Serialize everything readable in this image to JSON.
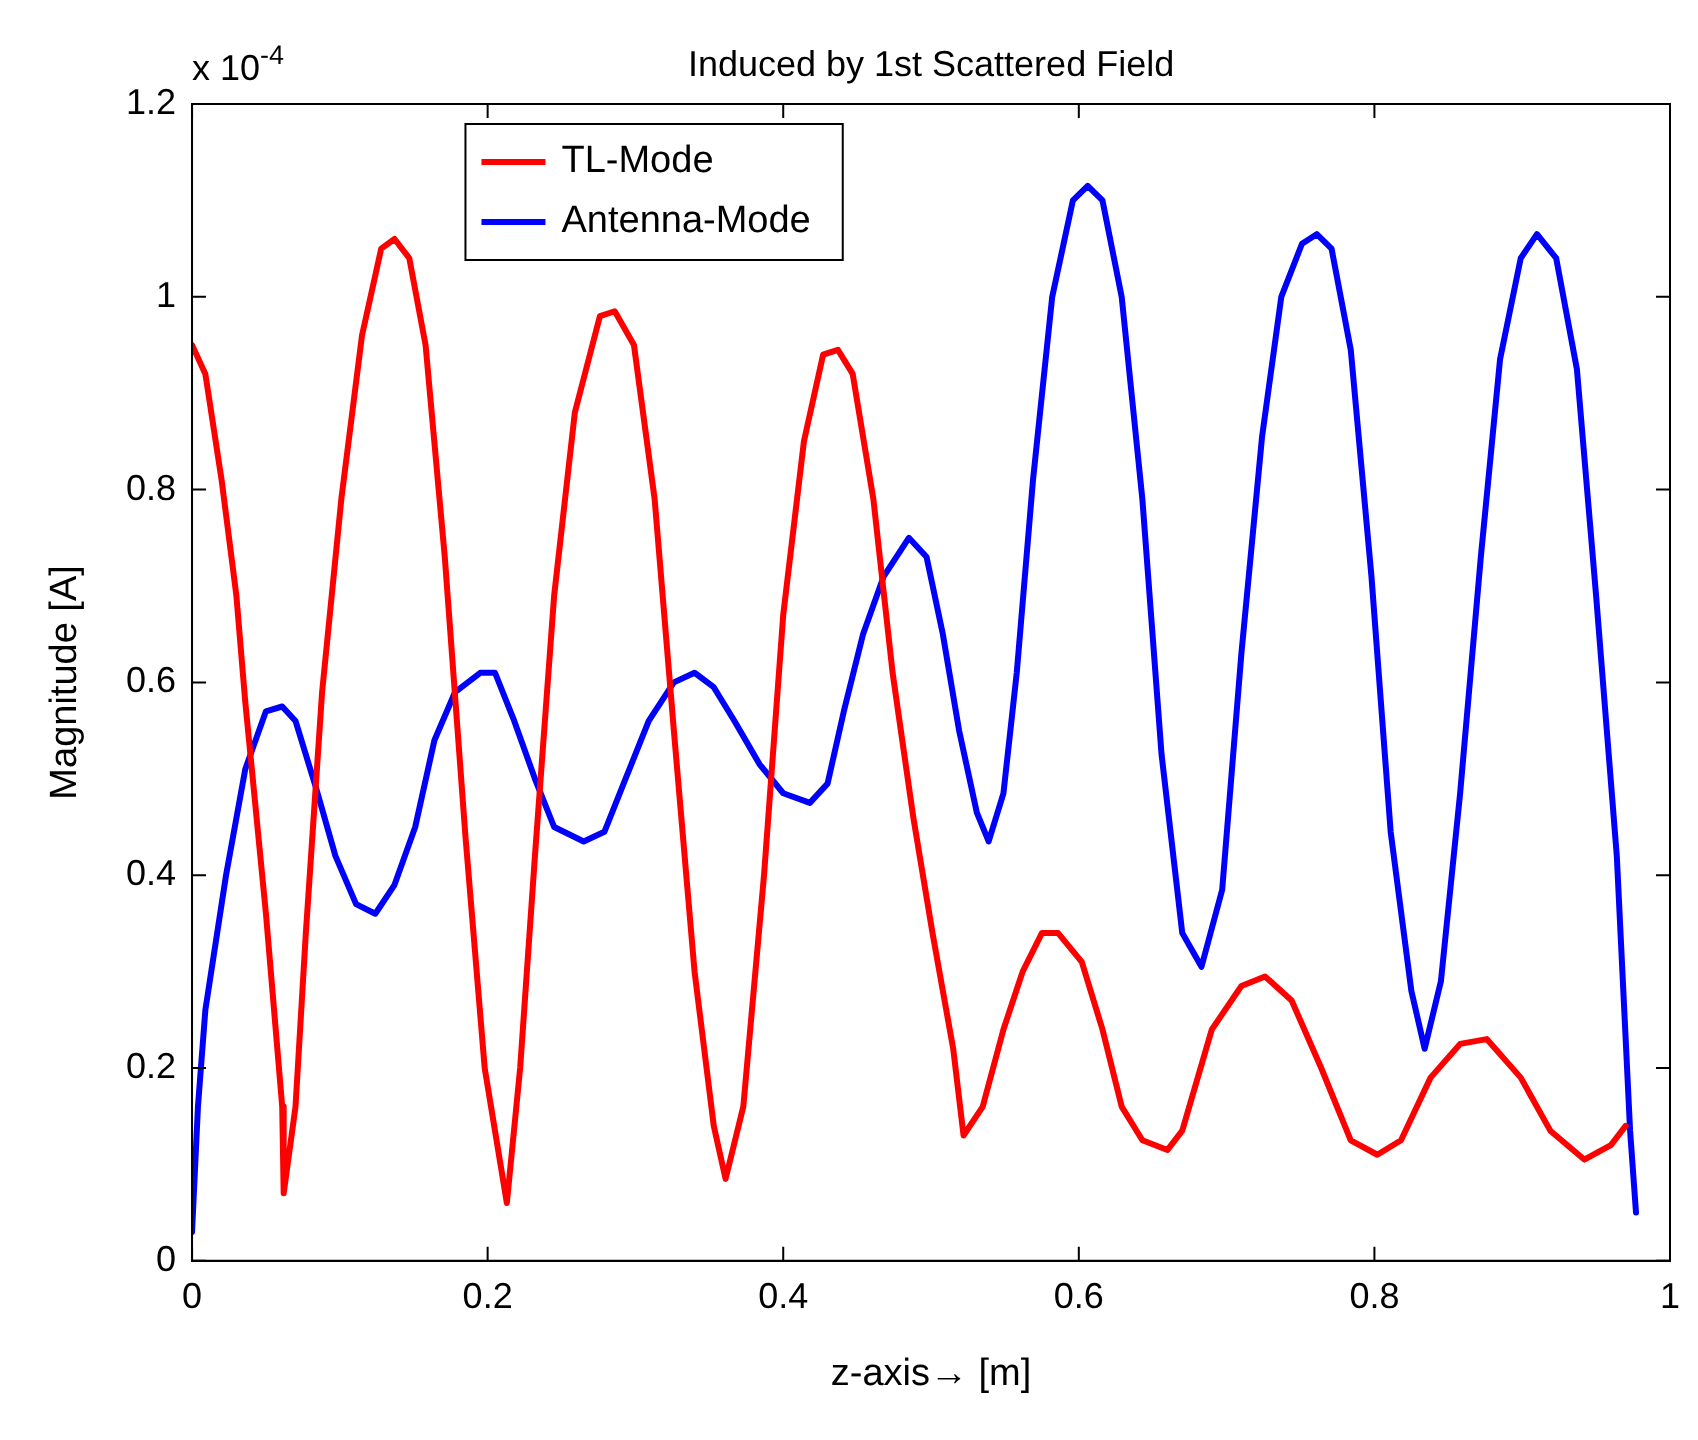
{
  "chart_data": {
    "type": "line",
    "title": "Induced by 1st Scattered Field",
    "xlabel": "z-axis→ [m]",
    "ylabel": "Magnitude [A]",
    "annotations": [
      "x 10$^{-4}$"
    ],
    "xlim": [
      0,
      1
    ],
    "xticks": [
      0,
      0.2,
      0.4,
      0.6,
      0.8,
      1
    ],
    "ylim": [
      0,
      1.2
    ],
    "yticks": [
      0,
      0.2,
      0.4,
      0.6,
      0.8,
      1,
      1.2
    ],
    "grid": false,
    "legend": "top",
    "line_style": "solid",
    "series": [
      {
        "name": "TL-Mode",
        "color": "#ff0000",
        "x": [
          0,
          0.009,
          0.02,
          0.03,
          0.036,
          0.05,
          0.061,
          0.062,
          0.07,
          0.077,
          0.088,
          0.101,
          0.115,
          0.128,
          0.137,
          0.147,
          0.158,
          0.171,
          0.185,
          0.198,
          0.213,
          0.222,
          0.232,
          0.245,
          0.259,
          0.276,
          0.286,
          0.299,
          0.313,
          0.326,
          0.34,
          0.353,
          0.361,
          0.373,
          0.387,
          0.4,
          0.414,
          0.427,
          0.437,
          0.447,
          0.461,
          0.474,
          0.488,
          0.501,
          0.515,
          0.522,
          0.535,
          0.549,
          0.562,
          0.575,
          0.586,
          0.602,
          0.616,
          0.629,
          0.643,
          0.66,
          0.67,
          0.69,
          0.71,
          0.726,
          0.744,
          0.764,
          0.784,
          0.802,
          0.818,
          0.838,
          0.858,
          0.876,
          0.899,
          0.919,
          0.942,
          0.96,
          0.97
        ],
        "values": [
          0.95,
          0.92,
          0.81,
          0.69,
          0.58,
          0.36,
          0.16,
          0.07,
          0.16,
          0.34,
          0.59,
          0.79,
          0.96,
          1.05,
          1.06,
          1.04,
          0.95,
          0.73,
          0.44,
          0.2,
          0.06,
          0.2,
          0.42,
          0.69,
          0.88,
          0.98,
          0.985,
          0.95,
          0.79,
          0.55,
          0.3,
          0.14,
          0.085,
          0.16,
          0.4,
          0.67,
          0.85,
          0.94,
          0.945,
          0.92,
          0.79,
          0.61,
          0.46,
          0.34,
          0.22,
          0.13,
          0.16,
          0.24,
          0.3,
          0.34,
          0.34,
          0.31,
          0.24,
          0.16,
          0.125,
          0.115,
          0.135,
          0.24,
          0.285,
          0.295,
          0.27,
          0.2,
          0.125,
          0.11,
          0.125,
          0.19,
          0.225,
          0.23,
          0.19,
          0.135,
          0.105,
          0.12,
          0.14
        ]
      },
      {
        "name": "Antenna-Mode",
        "color": "#0000ff",
        "x": [
          0,
          0.004,
          0.009,
          0.023,
          0.036,
          0.05,
          0.061,
          0.07,
          0.084,
          0.097,
          0.111,
          0.124,
          0.137,
          0.151,
          0.164,
          0.178,
          0.195,
          0.205,
          0.218,
          0.232,
          0.245,
          0.265,
          0.279,
          0.292,
          0.309,
          0.326,
          0.34,
          0.353,
          0.367,
          0.384,
          0.4,
          0.418,
          0.43,
          0.441,
          0.454,
          0.468,
          0.485,
          0.497,
          0.508,
          0.519,
          0.531,
          0.539,
          0.549,
          0.558,
          0.569,
          0.582,
          0.596,
          0.606,
          0.616,
          0.629,
          0.643,
          0.656,
          0.67,
          0.683,
          0.697,
          0.71,
          0.724,
          0.737,
          0.751,
          0.761,
          0.771,
          0.784,
          0.798,
          0.811,
          0.825,
          0.834,
          0.845,
          0.858,
          0.872,
          0.885,
          0.899,
          0.91,
          0.923,
          0.937,
          0.95,
          0.964,
          0.973,
          0.977
        ],
        "values": [
          0.03,
          0.16,
          0.26,
          0.4,
          0.51,
          0.57,
          0.575,
          0.56,
          0.49,
          0.42,
          0.37,
          0.36,
          0.39,
          0.45,
          0.54,
          0.59,
          0.61,
          0.61,
          0.56,
          0.5,
          0.45,
          0.435,
          0.445,
          0.495,
          0.56,
          0.6,
          0.61,
          0.595,
          0.56,
          0.515,
          0.485,
          0.475,
          0.495,
          0.57,
          0.65,
          0.71,
          0.75,
          0.73,
          0.65,
          0.55,
          0.465,
          0.435,
          0.485,
          0.61,
          0.81,
          1,
          1.1,
          1.115,
          1.1,
          1,
          0.79,
          0.525,
          0.34,
          0.305,
          0.385,
          0.63,
          0.855,
          1,
          1.055,
          1.065,
          1.05,
          0.945,
          0.71,
          0.445,
          0.28,
          0.22,
          0.29,
          0.485,
          0.73,
          0.935,
          1.04,
          1.065,
          1.04,
          0.925,
          0.69,
          0.42,
          0.135,
          0.05
        ]
      }
    ]
  }
}
